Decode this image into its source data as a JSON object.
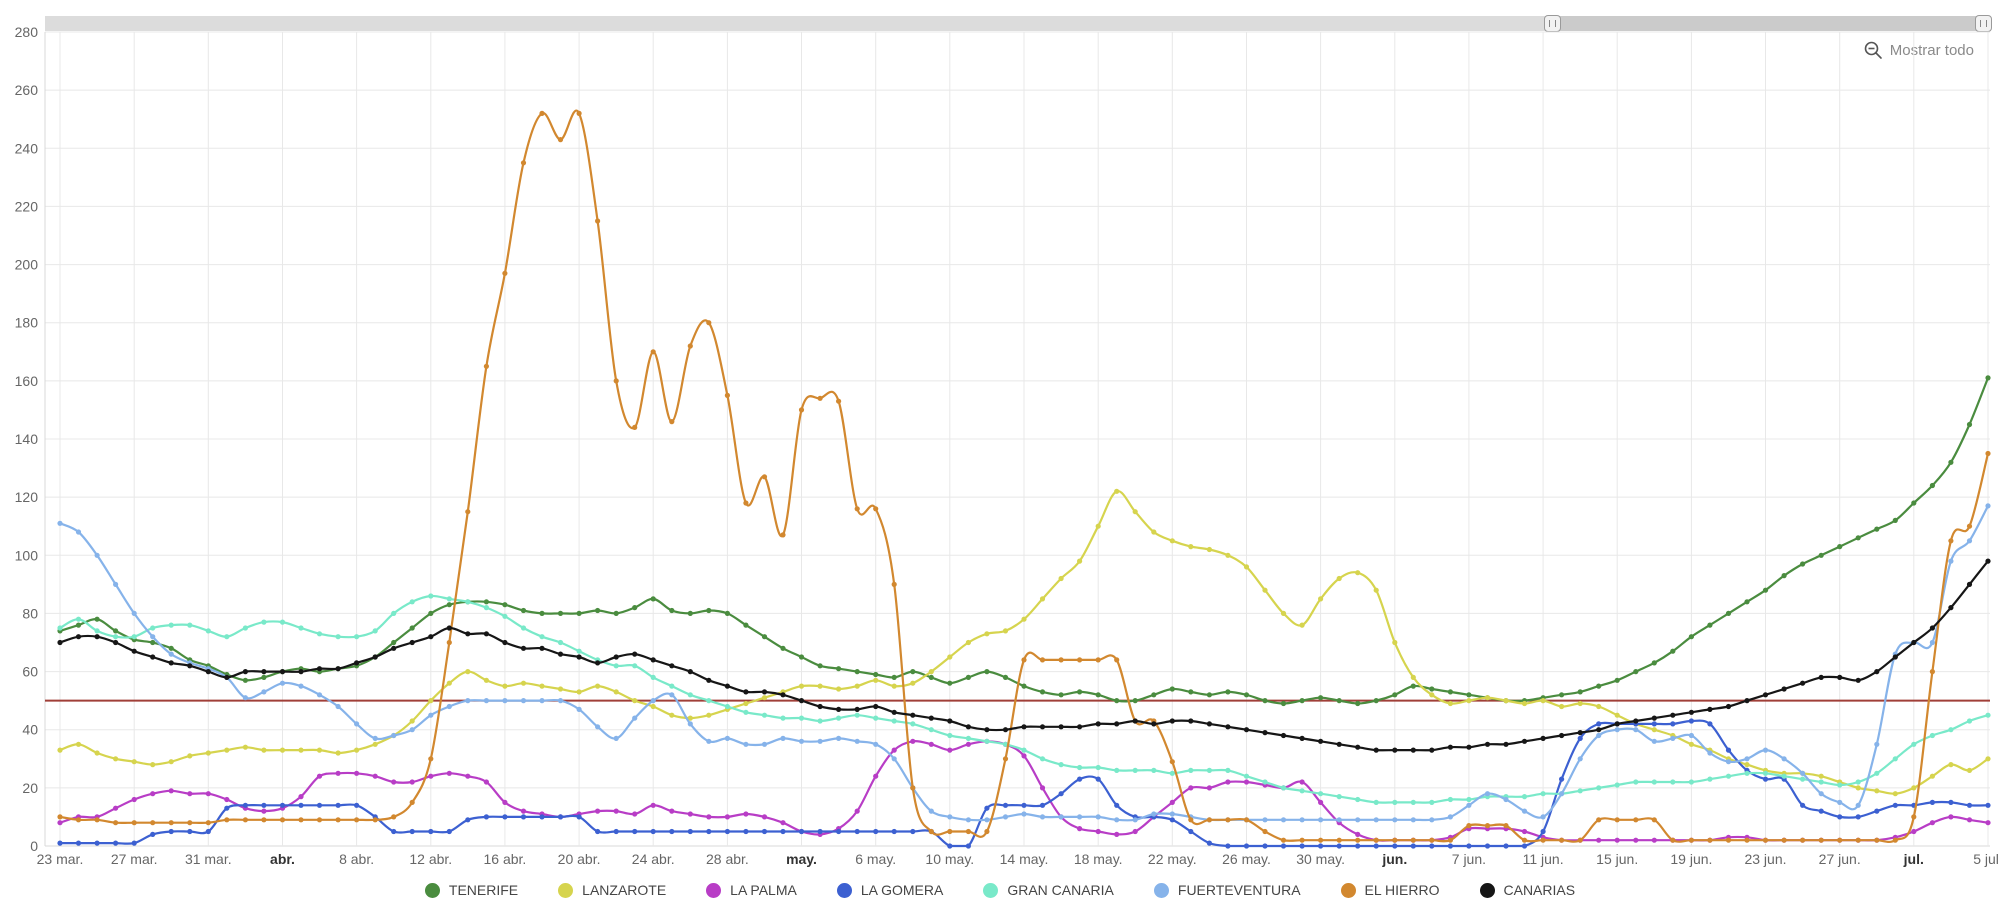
{
  "toolbar": {
    "show_all_label": "Mostrar todo"
  },
  "scrollbar": {
    "thumb_start_pct": 77.5
  },
  "chart_data": {
    "type": "line",
    "n_points": 105,
    "ylim": [
      0,
      280
    ],
    "y_tick_step": 20,
    "reference_line": {
      "value": 50,
      "color": "#a03f38"
    },
    "x_ticks": [
      {
        "pos": 0,
        "label": "23 mar.",
        "bold": false
      },
      {
        "pos": 4,
        "label": "27 mar.",
        "bold": false
      },
      {
        "pos": 8,
        "label": "31 mar.",
        "bold": false
      },
      {
        "pos": 12,
        "label": "abr.",
        "bold": true
      },
      {
        "pos": 16,
        "label": "8 abr.",
        "bold": false
      },
      {
        "pos": 20,
        "label": "12 abr.",
        "bold": false
      },
      {
        "pos": 24,
        "label": "16 abr.",
        "bold": false
      },
      {
        "pos": 28,
        "label": "20 abr.",
        "bold": false
      },
      {
        "pos": 32,
        "label": "24 abr.",
        "bold": false
      },
      {
        "pos": 36,
        "label": "28 abr.",
        "bold": false
      },
      {
        "pos": 40,
        "label": "may.",
        "bold": true
      },
      {
        "pos": 44,
        "label": "6 may.",
        "bold": false
      },
      {
        "pos": 48,
        "label": "10 may.",
        "bold": false
      },
      {
        "pos": 52,
        "label": "14 may.",
        "bold": false
      },
      {
        "pos": 56,
        "label": "18 may.",
        "bold": false
      },
      {
        "pos": 60,
        "label": "22 may.",
        "bold": false
      },
      {
        "pos": 64,
        "label": "26 may.",
        "bold": false
      },
      {
        "pos": 68,
        "label": "30 may.",
        "bold": false
      },
      {
        "pos": 72,
        "label": "jun.",
        "bold": true
      },
      {
        "pos": 76,
        "label": "7 jun.",
        "bold": false
      },
      {
        "pos": 80,
        "label": "11 jun.",
        "bold": false
      },
      {
        "pos": 84,
        "label": "15 jun.",
        "bold": false
      },
      {
        "pos": 88,
        "label": "19 jun.",
        "bold": false
      },
      {
        "pos": 92,
        "label": "23 jun.",
        "bold": false
      },
      {
        "pos": 96,
        "label": "27 jun.",
        "bold": false
      },
      {
        "pos": 100,
        "label": "jul.",
        "bold": true
      },
      {
        "pos": 104,
        "label": "5 jul.",
        "bold": false
      }
    ],
    "series": [
      {
        "name": "TENERIFE",
        "color": "#4a8c3f",
        "values": [
          74,
          76,
          78,
          74,
          71,
          70,
          68,
          64,
          62,
          59,
          57,
          58,
          60,
          61,
          60,
          61,
          62,
          65,
          70,
          75,
          80,
          83,
          84,
          84,
          83,
          81,
          80,
          80,
          80,
          81,
          80,
          82,
          85,
          81,
          80,
          81,
          80,
          76,
          72,
          68,
          65,
          62,
          61,
          60,
          59,
          58,
          60,
          58,
          56,
          58,
          60,
          58,
          55,
          53,
          52,
          53,
          52,
          50,
          50,
          52,
          54,
          53,
          52,
          53,
          52,
          50,
          49,
          50,
          51,
          50,
          49,
          50,
          52,
          55,
          54,
          53,
          52,
          51,
          50,
          50,
          51,
          52,
          53,
          55,
          57,
          60,
          63,
          67,
          72,
          76,
          80,
          84,
          88,
          93,
          97,
          100,
          103,
          106,
          109,
          112,
          118,
          124,
          132,
          145,
          161
        ]
      },
      {
        "name": "LANZAROTE",
        "color": "#d6d44e",
        "values": [
          33,
          35,
          32,
          30,
          29,
          28,
          29,
          31,
          32,
          33,
          34,
          33,
          33,
          33,
          33,
          32,
          33,
          35,
          38,
          43,
          50,
          56,
          60,
          57,
          55,
          56,
          55,
          54,
          53,
          55,
          53,
          50,
          48,
          45,
          44,
          45,
          47,
          49,
          51,
          53,
          55,
          55,
          54,
          55,
          57,
          55,
          56,
          60,
          65,
          70,
          73,
          74,
          78,
          85,
          92,
          98,
          110,
          122,
          115,
          108,
          105,
          103,
          102,
          100,
          96,
          88,
          80,
          76,
          85,
          92,
          94,
          88,
          70,
          58,
          52,
          49,
          50,
          51,
          50,
          49,
          50,
          48,
          49,
          48,
          45,
          42,
          40,
          38,
          35,
          33,
          30,
          28,
          26,
          25,
          25,
          24,
          22,
          20,
          19,
          18,
          20,
          24,
          28,
          26,
          30
        ]
      },
      {
        "name": "LA PALMA",
        "color": "#b83dc6",
        "values": [
          8,
          10,
          10,
          13,
          16,
          18,
          19,
          18,
          18,
          16,
          13,
          12,
          13,
          17,
          24,
          25,
          25,
          24,
          22,
          22,
          24,
          25,
          24,
          22,
          15,
          12,
          11,
          10,
          11,
          12,
          12,
          11,
          14,
          12,
          11,
          10,
          10,
          11,
          10,
          8,
          5,
          4,
          6,
          12,
          24,
          33,
          36,
          35,
          33,
          35,
          36,
          35,
          31,
          20,
          10,
          6,
          5,
          4,
          5,
          10,
          15,
          20,
          20,
          22,
          22,
          21,
          20,
          22,
          15,
          8,
          4,
          2,
          2,
          2,
          2,
          3,
          6,
          6,
          6,
          5,
          3,
          2,
          2,
          2,
          2,
          2,
          2,
          2,
          2,
          2,
          3,
          3,
          2,
          2,
          2,
          2,
          2,
          2,
          2,
          3,
          5,
          8,
          10,
          9,
          8
        ]
      },
      {
        "name": "LA GOMERA",
        "color": "#3c60d1",
        "values": [
          1,
          1,
          1,
          1,
          1,
          4,
          5,
          5,
          5,
          13,
          14,
          14,
          14,
          14,
          14,
          14,
          14,
          10,
          5,
          5,
          5,
          5,
          9,
          10,
          10,
          10,
          10,
          10,
          10,
          5,
          5,
          5,
          5,
          5,
          5,
          5,
          5,
          5,
          5,
          5,
          5,
          5,
          5,
          5,
          5,
          5,
          5,
          5,
          0,
          0,
          13,
          14,
          14,
          14,
          18,
          23,
          23,
          14,
          10,
          10,
          9,
          5,
          1,
          0,
          0,
          0,
          0,
          0,
          0,
          0,
          0,
          0,
          0,
          0,
          0,
          0,
          0,
          0,
          0,
          0,
          5,
          23,
          37,
          42,
          42,
          42,
          42,
          42,
          43,
          42,
          33,
          26,
          23,
          23,
          14,
          12,
          10,
          10,
          12,
          14,
          14,
          15,
          15,
          14,
          14
        ]
      },
      {
        "name": "GRAN CANARIA",
        "color": "#79e9c9",
        "values": [
          75,
          78,
          74,
          72,
          72,
          75,
          76,
          76,
          74,
          72,
          75,
          77,
          77,
          75,
          73,
          72,
          72,
          74,
          80,
          84,
          86,
          85,
          84,
          82,
          79,
          75,
          72,
          70,
          67,
          64,
          62,
          62,
          58,
          55,
          52,
          50,
          48,
          46,
          45,
          44,
          44,
          43,
          44,
          45,
          44,
          43,
          42,
          40,
          38,
          37,
          36,
          35,
          33,
          30,
          28,
          27,
          27,
          26,
          26,
          26,
          25,
          26,
          26,
          26,
          24,
          22,
          20,
          19,
          18,
          17,
          16,
          15,
          15,
          15,
          15,
          16,
          16,
          17,
          17,
          17,
          18,
          18,
          19,
          20,
          21,
          22,
          22,
          22,
          22,
          23,
          24,
          25,
          25,
          24,
          23,
          22,
          21,
          22,
          25,
          30,
          35,
          38,
          40,
          43,
          45
        ]
      },
      {
        "name": "FUERTEVENTURA",
        "color": "#86b3ea",
        "values": [
          111,
          108,
          100,
          90,
          80,
          72,
          66,
          63,
          61,
          58,
          51,
          53,
          56,
          55,
          52,
          48,
          42,
          37,
          38,
          40,
          45,
          48,
          50,
          50,
          50,
          50,
          50,
          50,
          47,
          41,
          37,
          44,
          50,
          52,
          42,
          36,
          37,
          35,
          35,
          37,
          36,
          36,
          37,
          36,
          35,
          30,
          20,
          12,
          10,
          9,
          9,
          10,
          11,
          10,
          10,
          10,
          10,
          9,
          9,
          11,
          11,
          10,
          9,
          9,
          9,
          9,
          9,
          9,
          9,
          9,
          9,
          9,
          9,
          9,
          9,
          10,
          14,
          18,
          16,
          12,
          10,
          18,
          30,
          38,
          40,
          40,
          36,
          37,
          38,
          32,
          29,
          30,
          33,
          30,
          25,
          18,
          15,
          14,
          35,
          66,
          70,
          70,
          98,
          105,
          117
        ]
      },
      {
        "name": "EL HIERRO",
        "color": "#d2882f",
        "values": [
          10,
          9,
          9,
          8,
          8,
          8,
          8,
          8,
          8,
          9,
          9,
          9,
          9,
          9,
          9,
          9,
          9,
          9,
          10,
          15,
          30,
          70,
          115,
          165,
          197,
          235,
          252,
          243,
          252,
          215,
          160,
          144,
          170,
          146,
          172,
          180,
          155,
          118,
          127,
          107,
          150,
          154,
          153,
          116,
          116,
          90,
          20,
          5,
          5,
          5,
          5,
          30,
          64,
          64,
          64,
          64,
          64,
          64,
          43,
          43,
          29,
          9,
          9,
          9,
          9,
          5,
          2,
          2,
          2,
          2,
          2,
          2,
          2,
          2,
          2,
          2,
          7,
          7,
          7,
          2,
          2,
          2,
          2,
          9,
          9,
          9,
          9,
          2,
          2,
          2,
          2,
          2,
          2,
          2,
          2,
          2,
          2,
          2,
          2,
          2,
          10,
          60,
          105,
          110,
          135
        ]
      },
      {
        "name": "CANARIAS",
        "color": "#161616",
        "values": [
          70,
          72,
          72,
          70,
          67,
          65,
          63,
          62,
          60,
          58,
          60,
          60,
          60,
          60,
          61,
          61,
          63,
          65,
          68,
          70,
          72,
          75,
          73,
          73,
          70,
          68,
          68,
          66,
          65,
          63,
          65,
          66,
          64,
          62,
          60,
          57,
          55,
          53,
          53,
          52,
          50,
          48,
          47,
          47,
          48,
          46,
          45,
          44,
          43,
          41,
          40,
          40,
          41,
          41,
          41,
          41,
          42,
          42,
          43,
          42,
          43,
          43,
          42,
          41,
          40,
          39,
          38,
          37,
          36,
          35,
          34,
          33,
          33,
          33,
          33,
          34,
          34,
          35,
          35,
          36,
          37,
          38,
          39,
          40,
          42,
          43,
          44,
          45,
          46,
          47,
          48,
          50,
          52,
          54,
          56,
          58,
          58,
          57,
          60,
          65,
          70,
          75,
          82,
          90,
          98
        ]
      }
    ]
  }
}
